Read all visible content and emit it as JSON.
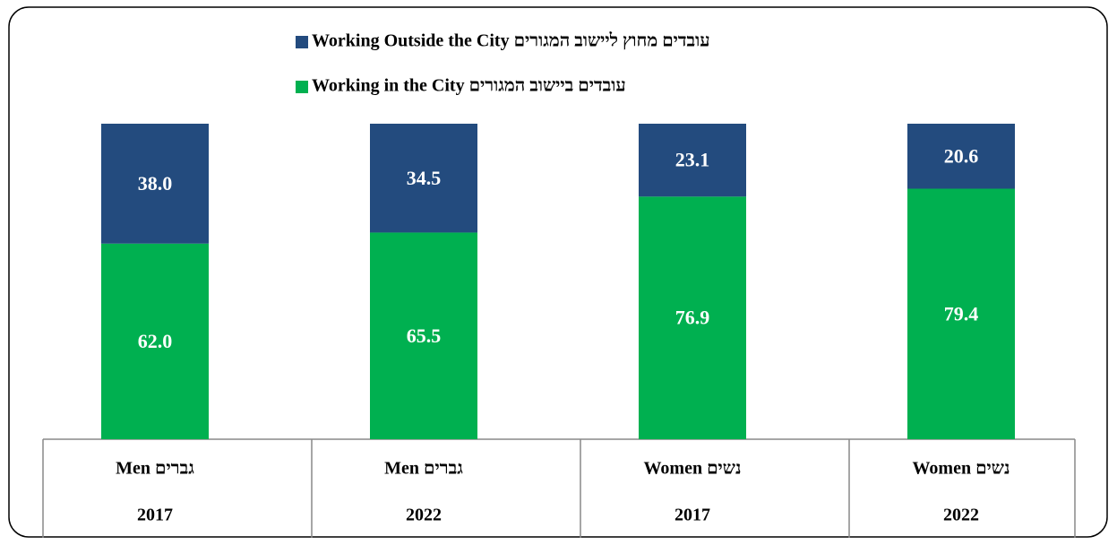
{
  "chart_data": {
    "type": "stacked_bar",
    "categories": [
      [
        "Men גברים",
        "2017"
      ],
      [
        "Men גברים",
        "2022"
      ],
      [
        "Women נשים",
        "2017"
      ],
      [
        "Women נשים",
        "2022"
      ]
    ],
    "series": [
      {
        "name": "Working in the City עובדים ביישוב המגורים",
        "color": "#00b050",
        "values": [
          62.0,
          65.5,
          76.9,
          79.4
        ],
        "value_labels": [
          "62.0",
          "65.5",
          "76.9",
          "79.4"
        ]
      },
      {
        "name": "Working Outside the City עובדים מחוץ ליישוב המגורים",
        "color": "#234b7e",
        "values": [
          38.0,
          34.5,
          23.1,
          20.6
        ],
        "value_labels": [
          "38.0",
          "34.5",
          "23.1",
          "20.6"
        ]
      }
    ],
    "ylim": [
      0,
      100
    ]
  }
}
